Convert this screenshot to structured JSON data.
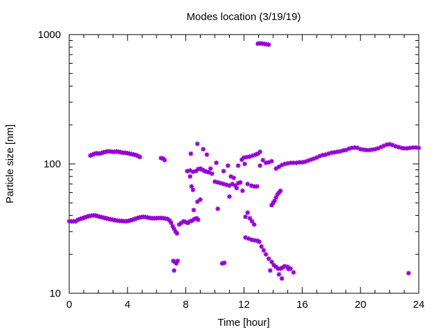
{
  "chart_data": {
    "type": "scatter",
    "title": "Modes location (3/19/19)",
    "xlabel": "Time [hour]",
    "ylabel": "Particle size [nm]",
    "xlim": [
      0,
      24
    ],
    "ylim": [
      10,
      1000
    ],
    "yscale": "log",
    "xticks": [
      0,
      4,
      8,
      12,
      16,
      20,
      24
    ],
    "xtick_labels": [
      "0",
      "4",
      "8",
      "12",
      "16",
      "20",
      "24"
    ],
    "yticks": [
      10,
      100,
      1000
    ],
    "ytick_labels": [
      "10",
      "100",
      "1000"
    ],
    "grid": false,
    "legend": "none",
    "marker_color": "#9400d3",
    "points": [
      [
        0.0,
        36
      ],
      [
        0.15,
        36
      ],
      [
        0.3,
        36
      ],
      [
        0.45,
        36
      ],
      [
        0.6,
        37
      ],
      [
        0.75,
        37.5
      ],
      [
        0.9,
        38
      ],
      [
        1.05,
        38.5
      ],
      [
        1.2,
        39
      ],
      [
        1.35,
        39.5
      ],
      [
        1.5,
        39.8
      ],
      [
        1.65,
        40
      ],
      [
        1.8,
        40
      ],
      [
        1.95,
        39.5
      ],
      [
        2.1,
        39
      ],
      [
        2.25,
        38.7
      ],
      [
        2.4,
        38.3
      ],
      [
        2.55,
        38
      ],
      [
        2.7,
        37.6
      ],
      [
        2.85,
        37.3
      ],
      [
        3.0,
        37
      ],
      [
        3.15,
        36.7
      ],
      [
        3.3,
        36.5
      ],
      [
        3.45,
        36.3
      ],
      [
        3.6,
        36.2
      ],
      [
        3.75,
        36.1
      ],
      [
        3.9,
        36
      ],
      [
        4.05,
        36.2
      ],
      [
        4.2,
        36.6
      ],
      [
        4.35,
        37
      ],
      [
        4.5,
        37.5
      ],
      [
        4.65,
        38
      ],
      [
        4.8,
        38.5
      ],
      [
        4.95,
        38.8
      ],
      [
        5.1,
        39
      ],
      [
        5.25,
        38.8
      ],
      [
        5.4,
        38.5
      ],
      [
        5.55,
        38.2
      ],
      [
        5.7,
        38
      ],
      [
        5.85,
        38
      ],
      [
        6.0,
        38.1
      ],
      [
        6.15,
        38.2
      ],
      [
        6.3,
        38.2
      ],
      [
        6.45,
        38.1
      ],
      [
        6.6,
        37.8
      ],
      [
        6.75,
        37.5
      ],
      [
        6.9,
        36.5
      ],
      [
        7.0,
        35
      ],
      [
        7.1,
        33
      ],
      [
        7.2,
        31.5
      ],
      [
        7.3,
        30
      ],
      [
        7.4,
        29
      ],
      [
        1.45,
        116
      ],
      [
        1.6,
        118
      ],
      [
        1.75,
        120
      ],
      [
        1.9,
        121
      ],
      [
        2.05,
        120
      ],
      [
        2.2,
        121
      ],
      [
        2.35,
        123
      ],
      [
        2.5,
        124
      ],
      [
        2.65,
        125
      ],
      [
        2.8,
        125
      ],
      [
        2.95,
        124
      ],
      [
        3.1,
        124
      ],
      [
        3.25,
        125
      ],
      [
        3.4,
        124
      ],
      [
        3.55,
        123
      ],
      [
        3.7,
        122
      ],
      [
        3.85,
        122
      ],
      [
        4.0,
        121
      ],
      [
        4.15,
        120
      ],
      [
        4.3,
        119
      ],
      [
        4.45,
        118
      ],
      [
        4.6,
        117
      ],
      [
        4.75,
        115
      ],
      [
        4.85,
        113
      ],
      [
        6.3,
        111
      ],
      [
        6.45,
        110
      ],
      [
        6.55,
        107
      ],
      [
        7.55,
        34
      ],
      [
        7.7,
        35
      ],
      [
        7.85,
        36
      ],
      [
        8.0,
        35.5
      ],
      [
        8.15,
        35
      ],
      [
        8.3,
        36
      ],
      [
        8.45,
        36.5
      ],
      [
        8.6,
        37.5
      ],
      [
        8.75,
        38
      ],
      [
        8.85,
        37
      ],
      [
        7.15,
        17.8
      ],
      [
        7.25,
        17.5
      ],
      [
        7.35,
        17
      ],
      [
        7.45,
        17.8
      ],
      [
        7.2,
        15
      ],
      [
        8.1,
        88
      ],
      [
        8.3,
        89
      ],
      [
        8.5,
        87
      ],
      [
        8.7,
        88
      ],
      [
        8.85,
        91
      ],
      [
        9.0,
        92
      ],
      [
        9.15,
        90
      ],
      [
        9.3,
        88
      ],
      [
        9.45,
        87
      ],
      [
        9.6,
        86
      ],
      [
        9.8,
        84
      ],
      [
        10.0,
        73
      ],
      [
        10.2,
        72
      ],
      [
        10.4,
        71
      ],
      [
        10.6,
        70
      ],
      [
        10.8,
        69
      ],
      [
        11.0,
        68
      ],
      [
        11.2,
        70
      ],
      [
        11.4,
        68
      ],
      [
        11.6,
        71
      ],
      [
        8.35,
        120
      ],
      [
        8.8,
        143
      ],
      [
        9.2,
        130
      ],
      [
        9.45,
        118
      ],
      [
        9.7,
        92
      ],
      [
        10.1,
        102
      ],
      [
        10.6,
        88
      ],
      [
        10.9,
        97
      ],
      [
        11.1,
        80
      ],
      [
        11.3,
        78
      ],
      [
        11.6,
        97
      ],
      [
        11.85,
        108
      ],
      [
        8.4,
        67
      ],
      [
        8.5,
        63
      ],
      [
        8.8,
        51
      ],
      [
        9.0,
        53
      ],
      [
        8.3,
        80
      ],
      [
        8.55,
        44
      ],
      [
        10.2,
        45
      ],
      [
        10.5,
        17
      ],
      [
        10.65,
        17.2
      ],
      [
        11.0,
        56
      ],
      [
        11.5,
        65
      ],
      [
        11.75,
        72
      ],
      [
        11.9,
        62
      ],
      [
        12.0,
        112
      ],
      [
        12.2,
        113
      ],
      [
        12.4,
        114
      ],
      [
        12.6,
        116
      ],
      [
        12.8,
        118
      ],
      [
        12.95,
        120
      ],
      [
        13.1,
        124
      ],
      [
        12.05,
        100
      ],
      [
        12.25,
        70
      ],
      [
        12.5,
        68
      ],
      [
        12.7,
        67
      ],
      [
        12.9,
        67
      ],
      [
        13.1,
        97
      ],
      [
        13.3,
        107
      ],
      [
        13.5,
        102
      ],
      [
        13.7,
        103
      ],
      [
        13.9,
        105
      ],
      [
        12.1,
        39
      ],
      [
        12.25,
        42
      ],
      [
        12.4,
        38
      ],
      [
        12.55,
        36
      ],
      [
        12.7,
        34
      ],
      [
        12.1,
        27
      ],
      [
        12.3,
        26.5
      ],
      [
        12.5,
        26
      ],
      [
        12.7,
        25.7
      ],
      [
        12.9,
        25.5
      ],
      [
        13.05,
        25
      ],
      [
        13.2,
        23
      ],
      [
        13.35,
        21.5
      ],
      [
        13.5,
        20
      ],
      [
        13.7,
        18.5
      ],
      [
        13.9,
        17.5
      ],
      [
        14.05,
        16.5
      ],
      [
        14.2,
        16
      ],
      [
        14.35,
        15.5
      ],
      [
        14.5,
        15.5
      ],
      [
        14.65,
        15.8
      ],
      [
        14.8,
        16.2
      ],
      [
        15.0,
        16
      ],
      [
        15.2,
        15.5
      ],
      [
        15.4,
        14.5
      ],
      [
        14.4,
        14
      ],
      [
        14.6,
        13
      ],
      [
        13.8,
        15
      ],
      [
        15.05,
        15.4
      ],
      [
        13.9,
        48
      ],
      [
        14.0,
        50
      ],
      [
        14.1,
        52
      ],
      [
        14.2,
        55
      ],
      [
        14.3,
        58
      ],
      [
        14.4,
        60
      ],
      [
        14.5,
        62
      ],
      [
        14.2,
        92
      ],
      [
        14.4,
        95
      ],
      [
        14.6,
        98
      ],
      [
        14.8,
        100
      ],
      [
        15.0,
        101
      ],
      [
        15.2,
        102
      ],
      [
        15.4,
        102
      ],
      [
        15.6,
        102
      ],
      [
        15.8,
        103
      ],
      [
        16.0,
        103
      ],
      [
        16.2,
        104
      ],
      [
        16.4,
        106
      ],
      [
        16.6,
        108
      ],
      [
        16.8,
        110
      ],
      [
        17.0,
        112
      ],
      [
        17.2,
        115
      ],
      [
        17.4,
        117
      ],
      [
        17.6,
        118
      ],
      [
        17.8,
        120
      ],
      [
        18.0,
        122
      ],
      [
        18.2,
        123
      ],
      [
        18.4,
        124
      ],
      [
        18.6,
        125
      ],
      [
        18.8,
        127
      ],
      [
        19.0,
        128
      ],
      [
        19.2,
        131
      ],
      [
        19.4,
        133
      ],
      [
        19.6,
        134
      ],
      [
        19.8,
        133
      ],
      [
        20.0,
        130
      ],
      [
        20.2,
        129
      ],
      [
        20.4,
        128
      ],
      [
        20.6,
        128
      ],
      [
        20.8,
        129
      ],
      [
        21.0,
        130
      ],
      [
        21.2,
        132
      ],
      [
        21.4,
        135
      ],
      [
        21.6,
        138
      ],
      [
        21.8,
        141
      ],
      [
        22.0,
        142
      ],
      [
        22.2,
        140
      ],
      [
        22.4,
        137
      ],
      [
        22.6,
        135
      ],
      [
        22.8,
        133
      ],
      [
        23.0,
        132
      ],
      [
        23.2,
        132
      ],
      [
        23.4,
        133
      ],
      [
        23.6,
        134
      ],
      [
        23.8,
        134
      ],
      [
        24.0,
        133
      ],
      [
        12.95,
        850
      ],
      [
        13.1,
        855
      ],
      [
        13.25,
        852
      ],
      [
        13.4,
        848
      ],
      [
        13.55,
        842
      ],
      [
        13.7,
        835
      ],
      [
        23.3,
        14.3
      ]
    ]
  }
}
